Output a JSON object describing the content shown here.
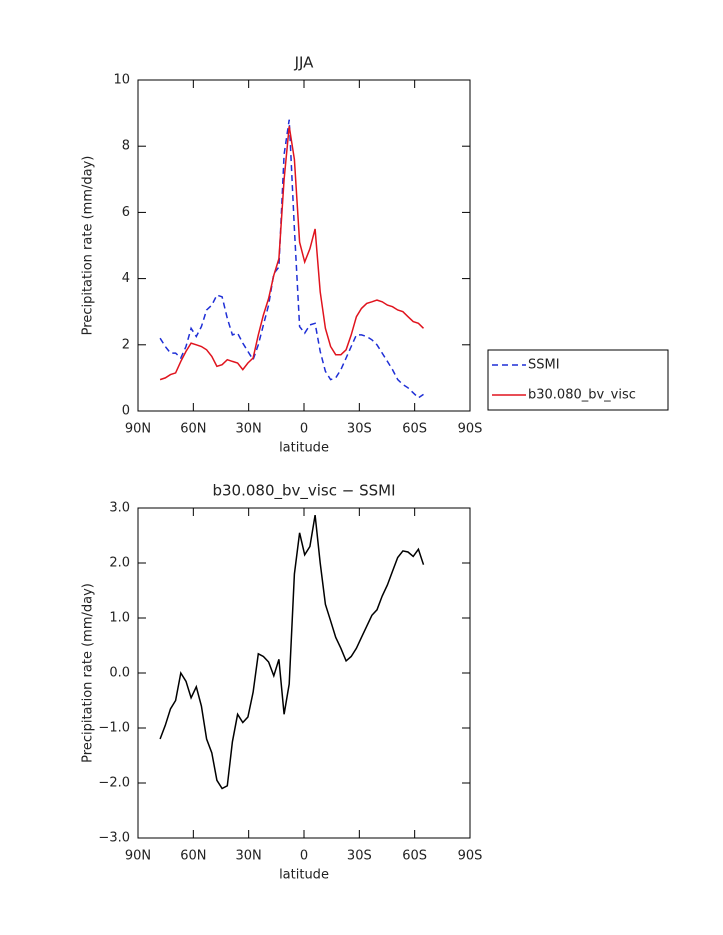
{
  "chart_data": [
    {
      "type": "line",
      "title": "JJA",
      "xlabel": "latitude",
      "ylabel": "Precipitation rate (mm/day)",
      "x": [
        78,
        75.2,
        72.4,
        69.6,
        66.8,
        64,
        61.2,
        58.4,
        55.6,
        52.8,
        50,
        47.2,
        44.4,
        41.6,
        38.8,
        36,
        33.2,
        30.4,
        27.6,
        24.8,
        22,
        19.2,
        16.4,
        13.6,
        10.8,
        8,
        5.2,
        2.4,
        -0.4,
        -3.2,
        -6,
        -8.8,
        -11.6,
        -14.4,
        -17.2,
        -20,
        -22.8,
        -25.6,
        -28.4,
        -31.2,
        -34,
        -36.8,
        -39.6,
        -42.4,
        -45.2,
        -48,
        -50.8,
        -53.6,
        -56.4,
        -59.2,
        -62,
        -64.8
      ],
      "series": [
        {
          "name": "SSMI",
          "color": "#1f2fd6",
          "linestyle": "dashed",
          "values": [
            2.2,
            1.95,
            1.75,
            1.75,
            1.6,
            1.95,
            2.5,
            2.25,
            2.55,
            3.05,
            3.2,
            3.5,
            3.45,
            2.8,
            2.3,
            2.35,
            2.05,
            1.8,
            1.55,
            2.0,
            2.6,
            3.2,
            4.15,
            4.35,
            7.75,
            8.8,
            5.5,
            2.55,
            2.35,
            2.6,
            2.65,
            1.8,
            1.2,
            0.95,
            1.0,
            1.25,
            1.6,
            1.95,
            2.3,
            2.3,
            2.25,
            2.15,
            2.0,
            1.75,
            1.5,
            1.25,
            0.95,
            0.8,
            0.7,
            0.55,
            0.4,
            0.5
          ]
        },
        {
          "name": "b30.080_bv_visc",
          "color": "#e0141e",
          "linestyle": "solid",
          "values": [
            0.95,
            1.0,
            1.1,
            1.15,
            1.5,
            1.8,
            2.05,
            2.0,
            1.95,
            1.85,
            1.65,
            1.35,
            1.4,
            1.55,
            1.5,
            1.45,
            1.25,
            1.45,
            1.6,
            2.3,
            2.9,
            3.4,
            4.1,
            4.6,
            7.0,
            8.6,
            7.6,
            5.1,
            4.5,
            4.9,
            5.5,
            3.6,
            2.5,
            1.95,
            1.7,
            1.7,
            1.85,
            2.3,
            2.85,
            3.1,
            3.25,
            3.3,
            3.35,
            3.3,
            3.2,
            3.15,
            3.05,
            3.0,
            2.85,
            2.7,
            2.65,
            2.5
          ]
        }
      ],
      "xlim": [
        90,
        -90
      ],
      "xticks": [
        {
          "value": 90,
          "label": "90N"
        },
        {
          "value": 60,
          "label": "60N"
        },
        {
          "value": 30,
          "label": "30N"
        },
        0,
        {
          "value": -30,
          "label": "30S"
        },
        {
          "value": -60,
          "label": "60S"
        },
        {
          "value": -90,
          "label": "90S"
        }
      ],
      "ylim": [
        0,
        10
      ],
      "yticks": [
        0,
        2,
        4,
        6,
        8,
        10
      ],
      "legend": "right"
    },
    {
      "type": "line",
      "title": "b30.080_bv_visc − SSMI",
      "xlabel": "latitude",
      "ylabel": "Precipitation rate (mm/day)",
      "x": [
        78,
        75.2,
        72.4,
        69.6,
        66.8,
        64,
        61.2,
        58.4,
        55.6,
        52.8,
        50,
        47.2,
        44.4,
        41.6,
        38.8,
        36,
        33.2,
        30.4,
        27.6,
        24.8,
        22,
        19.2,
        16.4,
        13.6,
        10.8,
        8,
        5.2,
        2.4,
        -0.4,
        -3.2,
        -6,
        -8.8,
        -11.6,
        -14.4,
        -17.2,
        -20,
        -22.8,
        -25.6,
        -28.4,
        -31.2,
        -34,
        -36.8,
        -39.6,
        -42.4,
        -45.2,
        -48,
        -50.8,
        -53.6,
        -56.4,
        -59.2,
        -62,
        -64.8
      ],
      "series": [
        {
          "color": "#000000",
          "linestyle": "solid",
          "values": [
            -1.2,
            -0.95,
            -0.65,
            -0.5,
            0.0,
            -0.15,
            -0.45,
            -0.25,
            -0.6,
            -1.2,
            -1.45,
            -1.95,
            -2.1,
            -2.05,
            -1.25,
            -0.75,
            -0.9,
            -0.8,
            -0.35,
            0.35,
            0.3,
            0.2,
            -0.05,
            0.25,
            -0.75,
            -0.2,
            1.8,
            2.55,
            2.15,
            2.3,
            2.87,
            2.0,
            1.25,
            0.95,
            0.65,
            0.45,
            0.22,
            0.3,
            0.45,
            0.65,
            0.85,
            1.05,
            1.15,
            1.4,
            1.6,
            1.85,
            2.1,
            2.22,
            2.2,
            2.12,
            2.25,
            1.97
          ]
        }
      ],
      "xlim": [
        90,
        -90
      ],
      "xticks": [
        {
          "value": 90,
          "label": "90N"
        },
        {
          "value": 60,
          "label": "60N"
        },
        {
          "value": 30,
          "label": "30N"
        },
        0,
        {
          "value": -30,
          "label": "30S"
        },
        {
          "value": -60,
          "label": "60S"
        },
        {
          "value": -90,
          "label": "90S"
        }
      ],
      "ylim": [
        -3,
        3
      ],
      "yticks": [
        {
          "value": -3,
          "label": "−3.0"
        },
        {
          "value": -2,
          "label": "−2.0"
        },
        {
          "value": -1,
          "label": "−1.0"
        },
        {
          "value": 0,
          "label": "0.0"
        },
        {
          "value": 1,
          "label": "1.0"
        },
        {
          "value": 2,
          "label": "2.0"
        },
        {
          "value": 3,
          "label": "3.0"
        }
      ]
    }
  ]
}
